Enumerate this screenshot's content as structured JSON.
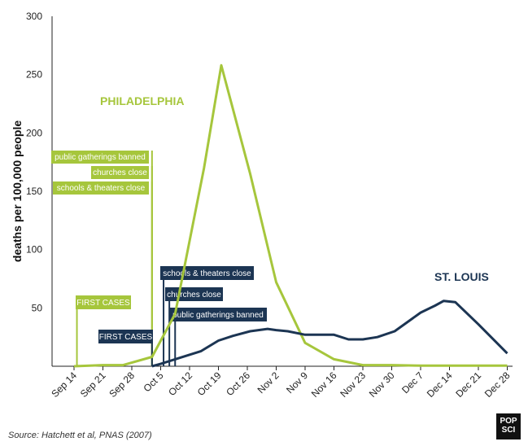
{
  "chart_data": {
    "type": "line",
    "title": "",
    "xlabel": "",
    "ylabel": "deaths per 100,000 people",
    "ylim": [
      0,
      300
    ],
    "yticks": [
      50,
      100,
      150,
      200,
      250,
      300
    ],
    "x_tick_labels": [
      "Sep 14",
      "Sep 21",
      "Sep 28",
      "Oct 5",
      "Oct 12",
      "Oct 19",
      "Oct 26",
      "Nov 2",
      "Nov 9",
      "Nov 16",
      "Nov 23",
      "Nov 30",
      "Dec 7",
      "Dec 14",
      "Dec 21",
      "Dec 28"
    ],
    "series": [
      {
        "name": "PHILADELPHIA",
        "color": "#a6c63c",
        "x": [
          0,
          1,
          1.7,
          2.7,
          3.5,
          4.5,
          5.1,
          6.1,
          7,
          8,
          9,
          10,
          11,
          12,
          13,
          14,
          15
        ],
        "y": [
          0,
          1,
          1,
          8,
          45,
          170,
          258,
          165,
          72,
          20,
          6,
          1,
          1,
          0.5,
          0.5,
          0.5,
          0.5
        ]
      },
      {
        "name": "ST. LOUIS",
        "color": "#1c3553",
        "x": [
          2.7,
          3,
          3.5,
          4.4,
          5,
          5.5,
          6.1,
          6.7,
          7,
          7.4,
          8,
          8.5,
          9,
          9.5,
          10,
          10.5,
          11.1,
          12,
          12.5,
          12.8,
          13.2,
          14,
          15
        ],
        "y": [
          0,
          2,
          6,
          13,
          22,
          26,
          30,
          32,
          31,
          30,
          27,
          27,
          27,
          23,
          23,
          25,
          30,
          46,
          52,
          56,
          55,
          36,
          11
        ]
      }
    ],
    "annotations": [
      {
        "series": "PHILADELPHIA",
        "x": 0.1,
        "label": "FIRST CASES"
      },
      {
        "series": "PHILADELPHIA",
        "x": 2.7,
        "label": "schools & theaters close"
      },
      {
        "series": "PHILADELPHIA",
        "x": 2.7,
        "label": "churches close"
      },
      {
        "series": "PHILADELPHIA",
        "x": 2.7,
        "label": "public gatherings banned"
      },
      {
        "series": "ST. LOUIS",
        "x": 2.7,
        "label": "FIRST CASES"
      },
      {
        "series": "ST. LOUIS",
        "x": 3.1,
        "label": "schools & theaters close"
      },
      {
        "series": "ST. LOUIS",
        "x": 3.3,
        "label": "churches close"
      },
      {
        "series": "ST. LOUIS",
        "x": 3.5,
        "label": "public gatherings banned"
      }
    ]
  },
  "footer": {
    "source": "Source: Hatchett et al, PNAS (2007)",
    "logo_top": "POP",
    "logo_bottom": "SCI"
  }
}
